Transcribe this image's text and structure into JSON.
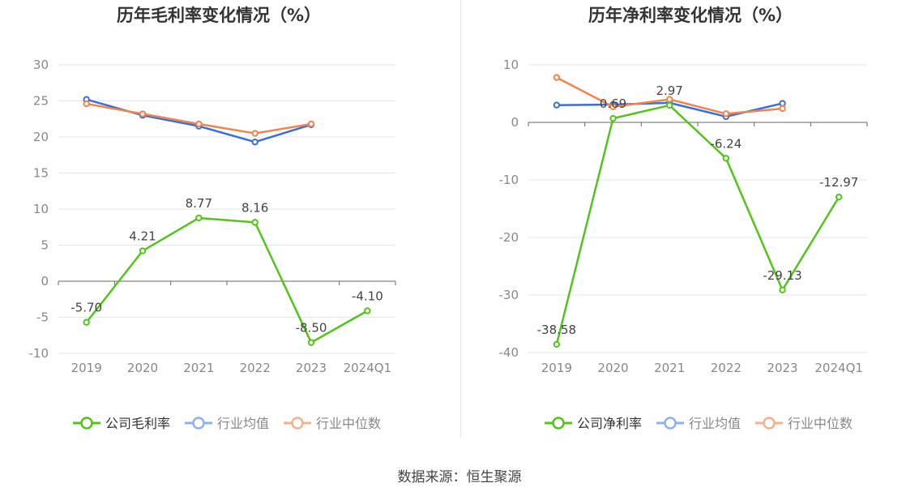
{
  "source": "数据来源：恒生聚源",
  "chart_data": [
    {
      "type": "line",
      "title": "历年毛利率变化情况（%）",
      "categories": [
        "2019",
        "2020",
        "2021",
        "2022",
        "2023",
        "2024Q1"
      ],
      "ylim": [
        -10,
        30
      ],
      "yticks": [
        30,
        25,
        20,
        15,
        10,
        5,
        0,
        -5,
        -10
      ],
      "grid": true,
      "legend_position": "bottom",
      "series": [
        {
          "name": "公司毛利率",
          "color": "#52c41a",
          "labeled": true,
          "values": [
            -5.7,
            4.21,
            8.77,
            8.16,
            -8.5,
            -4.1
          ],
          "labels": [
            "-5.70",
            "4.21",
            "8.77",
            "8.16",
            "-8.50",
            "-4.10"
          ]
        },
        {
          "name": "行业均值",
          "color": "#3a6fd8",
          "labeled": false,
          "values": [
            25.2,
            23.0,
            21.5,
            19.3,
            21.7,
            null
          ]
        },
        {
          "name": "行业中位数",
          "color": "#f0844d",
          "labeled": false,
          "values": [
            24.6,
            23.2,
            21.8,
            20.5,
            21.8,
            null
          ]
        }
      ]
    },
    {
      "type": "line",
      "title": "历年净利率变化情况（%）",
      "categories": [
        "2019",
        "2020",
        "2021",
        "2022",
        "2023",
        "2024Q1"
      ],
      "ylim": [
        -40,
        10
      ],
      "yticks": [
        10,
        0,
        -10,
        -20,
        -30,
        -40
      ],
      "grid": true,
      "legend_position": "bottom",
      "series": [
        {
          "name": "公司净利率",
          "color": "#52c41a",
          "labeled": true,
          "values": [
            -38.58,
            0.69,
            2.97,
            -6.24,
            -29.13,
            -12.97
          ],
          "labels": [
            "-38.58",
            "0.69",
            "2.97",
            "-6.24",
            "-29.13",
            "-12.97"
          ]
        },
        {
          "name": "行业均值",
          "color": "#3a6fd8",
          "labeled": false,
          "values": [
            3.0,
            3.1,
            3.4,
            1.0,
            3.3,
            null
          ]
        },
        {
          "name": "行业中位数",
          "color": "#f0844d",
          "labeled": false,
          "values": [
            7.8,
            2.7,
            4.0,
            1.5,
            2.4,
            null
          ]
        }
      ]
    }
  ]
}
